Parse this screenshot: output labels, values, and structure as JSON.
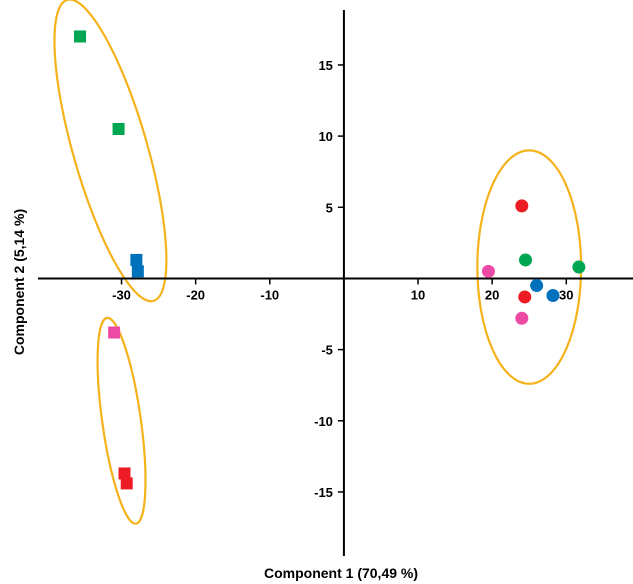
{
  "chart_data": {
    "type": "scatter",
    "title": "",
    "xlabel": "Component 1 (70,49 %)",
    "ylabel": "Component 2 (5,14 %)",
    "xlim": [
      -41,
      39
    ],
    "ylim": [
      -19.5,
      19
    ],
    "x_ticks": [
      -30,
      -20,
      -10,
      10,
      20,
      30
    ],
    "y_ticks": [
      15,
      10,
      5,
      -5,
      -10,
      -15
    ],
    "grid": false,
    "legend": "none",
    "points": [
      {
        "x": -35.6,
        "y": 17.0,
        "shape": "square",
        "color": "#00a651"
      },
      {
        "x": -30.4,
        "y": 10.5,
        "shape": "square",
        "color": "#00a651"
      },
      {
        "x": -28.0,
        "y": 1.3,
        "shape": "square",
        "color": "#0072bc"
      },
      {
        "x": -27.8,
        "y": 0.5,
        "shape": "square",
        "color": "#0072bc"
      },
      {
        "x": -31.0,
        "y": -3.8,
        "shape": "square",
        "color": "#ec4aa4"
      },
      {
        "x": -29.6,
        "y": -13.7,
        "shape": "square",
        "color": "#ed1c24"
      },
      {
        "x": -29.3,
        "y": -14.4,
        "shape": "square",
        "color": "#ed1c24"
      },
      {
        "x": 24.0,
        "y": 5.1,
        "shape": "circle",
        "color": "#ed1c24"
      },
      {
        "x": 24.5,
        "y": 1.3,
        "shape": "circle",
        "color": "#00a651"
      },
      {
        "x": 31.7,
        "y": 0.8,
        "shape": "circle",
        "color": "#00a651"
      },
      {
        "x": 19.5,
        "y": 0.5,
        "shape": "circle",
        "color": "#ec4aa4"
      },
      {
        "x": 26.0,
        "y": -0.5,
        "shape": "circle",
        "color": "#0072bc"
      },
      {
        "x": 28.2,
        "y": -1.2,
        "shape": "circle",
        "color": "#0072bc"
      },
      {
        "x": 24.4,
        "y": -1.3,
        "shape": "circle",
        "color": "#ed1c24"
      },
      {
        "x": 24.0,
        "y": -2.8,
        "shape": "circle",
        "color": "#ec4aa4"
      }
    ],
    "annotations": [
      {
        "type": "ellipse",
        "color": "#f5b21b",
        "cx": -31.5,
        "cy": 9.0,
        "rx": 5.0,
        "ry": 11.0,
        "rotate": -16
      },
      {
        "type": "ellipse",
        "color": "#f5b21b",
        "cx": -30.0,
        "cy": -10.0,
        "rx": 2.6,
        "ry": 7.3,
        "rotate": -8
      },
      {
        "type": "ellipse",
        "color": "#f5b21b",
        "cx": 25.0,
        "cy": 0.8,
        "rx": 7.0,
        "ry": 8.2,
        "rotate": 0
      }
    ]
  }
}
